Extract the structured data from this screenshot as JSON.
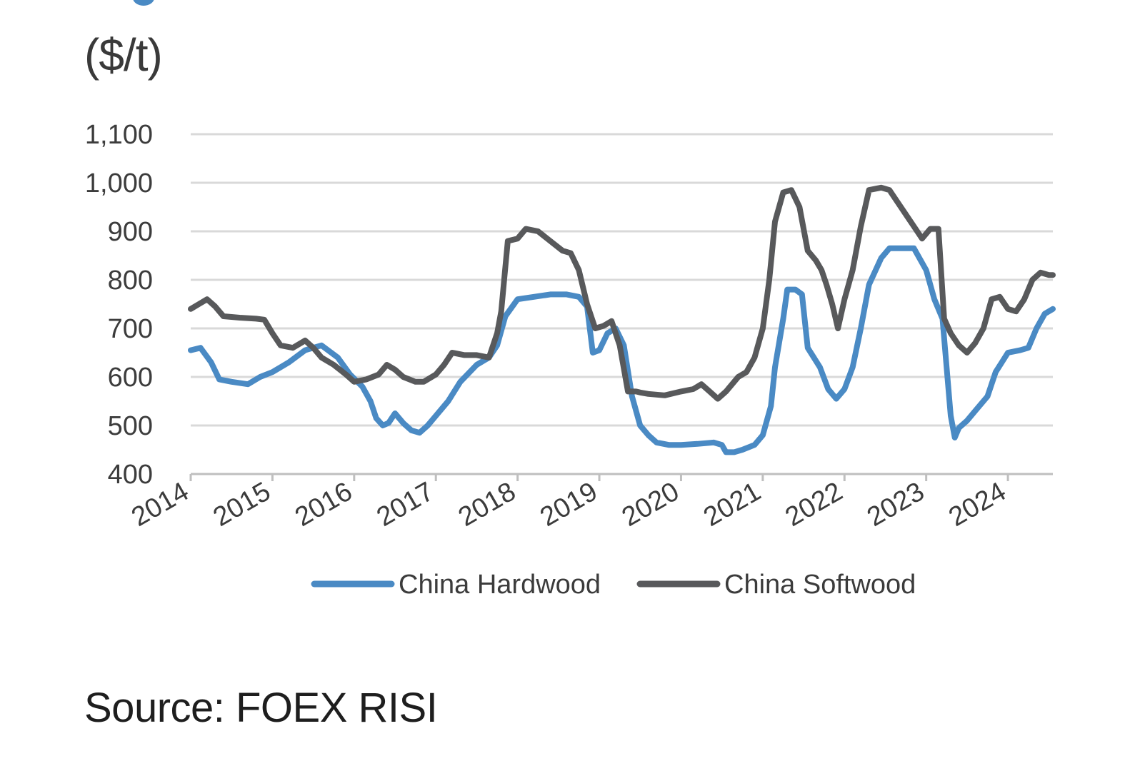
{
  "figure": {
    "unit_label": "($/t)",
    "source": "Source: FOEX RISI"
  },
  "colors": {
    "hardwood": "#4a8ac4",
    "softwood": "#58595b",
    "grid": "#d9d9d9",
    "axis": "#bfbfbf"
  },
  "chart_data": {
    "type": "line",
    "title": "",
    "xlabel": "",
    "ylabel": "($/t)",
    "xlim": [
      2014.0,
      2024.55
    ],
    "ylim": [
      400,
      1100
    ],
    "y_ticks": [
      400,
      500,
      600,
      700,
      800,
      900,
      1000,
      1100
    ],
    "y_tick_labels": [
      "400",
      "500",
      "600",
      "700",
      "800",
      "900",
      "1,000",
      "1,100"
    ],
    "x_ticks": [
      2014,
      2015,
      2016,
      2017,
      2018,
      2019,
      2020,
      2021,
      2022,
      2023,
      2024
    ],
    "x_tick_labels": [
      "2014",
      "2015",
      "2016",
      "2017",
      "2018",
      "2019",
      "2020",
      "2021",
      "2022",
      "2023",
      "2024"
    ],
    "grid": true,
    "legend": "bottom",
    "series": [
      {
        "name": "China Hardwood",
        "color": "#4a8ac4",
        "x": [
          2014.0,
          2014.12,
          2014.25,
          2014.35,
          2014.5,
          2014.7,
          2014.85,
          2015.0,
          2015.2,
          2015.4,
          2015.5,
          2015.6,
          2015.8,
          2015.95,
          2016.1,
          2016.2,
          2016.27,
          2016.35,
          2016.42,
          2016.5,
          2016.6,
          2016.7,
          2016.8,
          2016.9,
          2017.0,
          2017.15,
          2017.3,
          2017.5,
          2017.65,
          2017.75,
          2017.85,
          2018.0,
          2018.2,
          2018.4,
          2018.6,
          2018.75,
          2018.85,
          2018.92,
          2019.0,
          2019.1,
          2019.2,
          2019.3,
          2019.4,
          2019.5,
          2019.6,
          2019.7,
          2019.85,
          2020.0,
          2020.2,
          2020.4,
          2020.5,
          2020.55,
          2020.65,
          2020.75,
          2020.9,
          2021.0,
          2021.1,
          2021.15,
          2021.25,
          2021.3,
          2021.4,
          2021.48,
          2021.55,
          2021.7,
          2021.8,
          2021.9,
          2022.0,
          2022.1,
          2022.2,
          2022.3,
          2022.45,
          2022.55,
          2022.7,
          2022.85,
          2023.0,
          2023.1,
          2023.2,
          2023.3,
          2023.35,
          2023.4,
          2023.5,
          2023.6,
          2023.75,
          2023.85,
          2024.0,
          2024.15,
          2024.25,
          2024.35,
          2024.45,
          2024.55
        ],
        "y": [
          655,
          660,
          630,
          595,
          590,
          585,
          600,
          610,
          630,
          655,
          660,
          665,
          640,
          605,
          580,
          550,
          515,
          500,
          505,
          525,
          505,
          490,
          485,
          500,
          520,
          550,
          590,
          625,
          640,
          665,
          725,
          760,
          765,
          770,
          770,
          765,
          745,
          650,
          655,
          690,
          700,
          665,
          560,
          500,
          480,
          465,
          460,
          460,
          462,
          465,
          460,
          445,
          445,
          450,
          460,
          480,
          540,
          620,
          720,
          780,
          780,
          770,
          660,
          620,
          575,
          555,
          575,
          620,
          700,
          790,
          845,
          865,
          865,
          865,
          820,
          760,
          720,
          520,
          475,
          495,
          510,
          530,
          560,
          610,
          650,
          655,
          660,
          700,
          730,
          740
        ]
      },
      {
        "name": "China Softwood",
        "color": "#58595b",
        "x": [
          2014.0,
          2014.1,
          2014.2,
          2014.3,
          2014.4,
          2014.6,
          2014.8,
          2014.9,
          2015.0,
          2015.1,
          2015.25,
          2015.4,
          2015.5,
          2015.6,
          2015.75,
          2015.9,
          2016.0,
          2016.15,
          2016.3,
          2016.4,
          2016.5,
          2016.6,
          2016.75,
          2016.85,
          2017.0,
          2017.1,
          2017.2,
          2017.35,
          2017.5,
          2017.65,
          2017.75,
          2017.8,
          2017.88,
          2018.0,
          2018.1,
          2018.25,
          2018.4,
          2018.55,
          2018.65,
          2018.75,
          2018.85,
          2018.95,
          2019.05,
          2019.15,
          2019.25,
          2019.35,
          2019.45,
          2019.5,
          2019.6,
          2019.8,
          2020.0,
          2020.15,
          2020.25,
          2020.35,
          2020.45,
          2020.55,
          2020.7,
          2020.8,
          2020.9,
          2021.0,
          2021.08,
          2021.15,
          2021.25,
          2021.35,
          2021.45,
          2021.55,
          2021.65,
          2021.72,
          2021.78,
          2021.85,
          2021.92,
          2022.0,
          2022.1,
          2022.2,
          2022.3,
          2022.45,
          2022.55,
          2022.65,
          2022.75,
          2022.85,
          2022.95,
          2023.05,
          2023.15,
          2023.22,
          2023.3,
          2023.4,
          2023.5,
          2023.6,
          2023.7,
          2023.8,
          2023.9,
          2024.0,
          2024.1,
          2024.2,
          2024.3,
          2024.4,
          2024.5,
          2024.55
        ],
        "y": [
          740,
          750,
          760,
          745,
          725,
          722,
          720,
          718,
          690,
          665,
          660,
          675,
          660,
          640,
          625,
          605,
          590,
          595,
          605,
          625,
          615,
          600,
          590,
          590,
          605,
          625,
          650,
          645,
          645,
          640,
          690,
          735,
          880,
          885,
          905,
          900,
          880,
          860,
          855,
          820,
          750,
          700,
          705,
          715,
          665,
          570,
          570,
          568,
          565,
          562,
          570,
          575,
          585,
          570,
          555,
          570,
          600,
          610,
          640,
          700,
          800,
          920,
          980,
          985,
          950,
          860,
          840,
          820,
          790,
          750,
          700,
          760,
          820,
          910,
          985,
          990,
          985,
          960,
          935,
          910,
          885,
          905,
          905,
          720,
          690,
          665,
          650,
          670,
          700,
          760,
          765,
          740,
          735,
          760,
          800,
          815,
          810,
          810
        ]
      }
    ]
  }
}
